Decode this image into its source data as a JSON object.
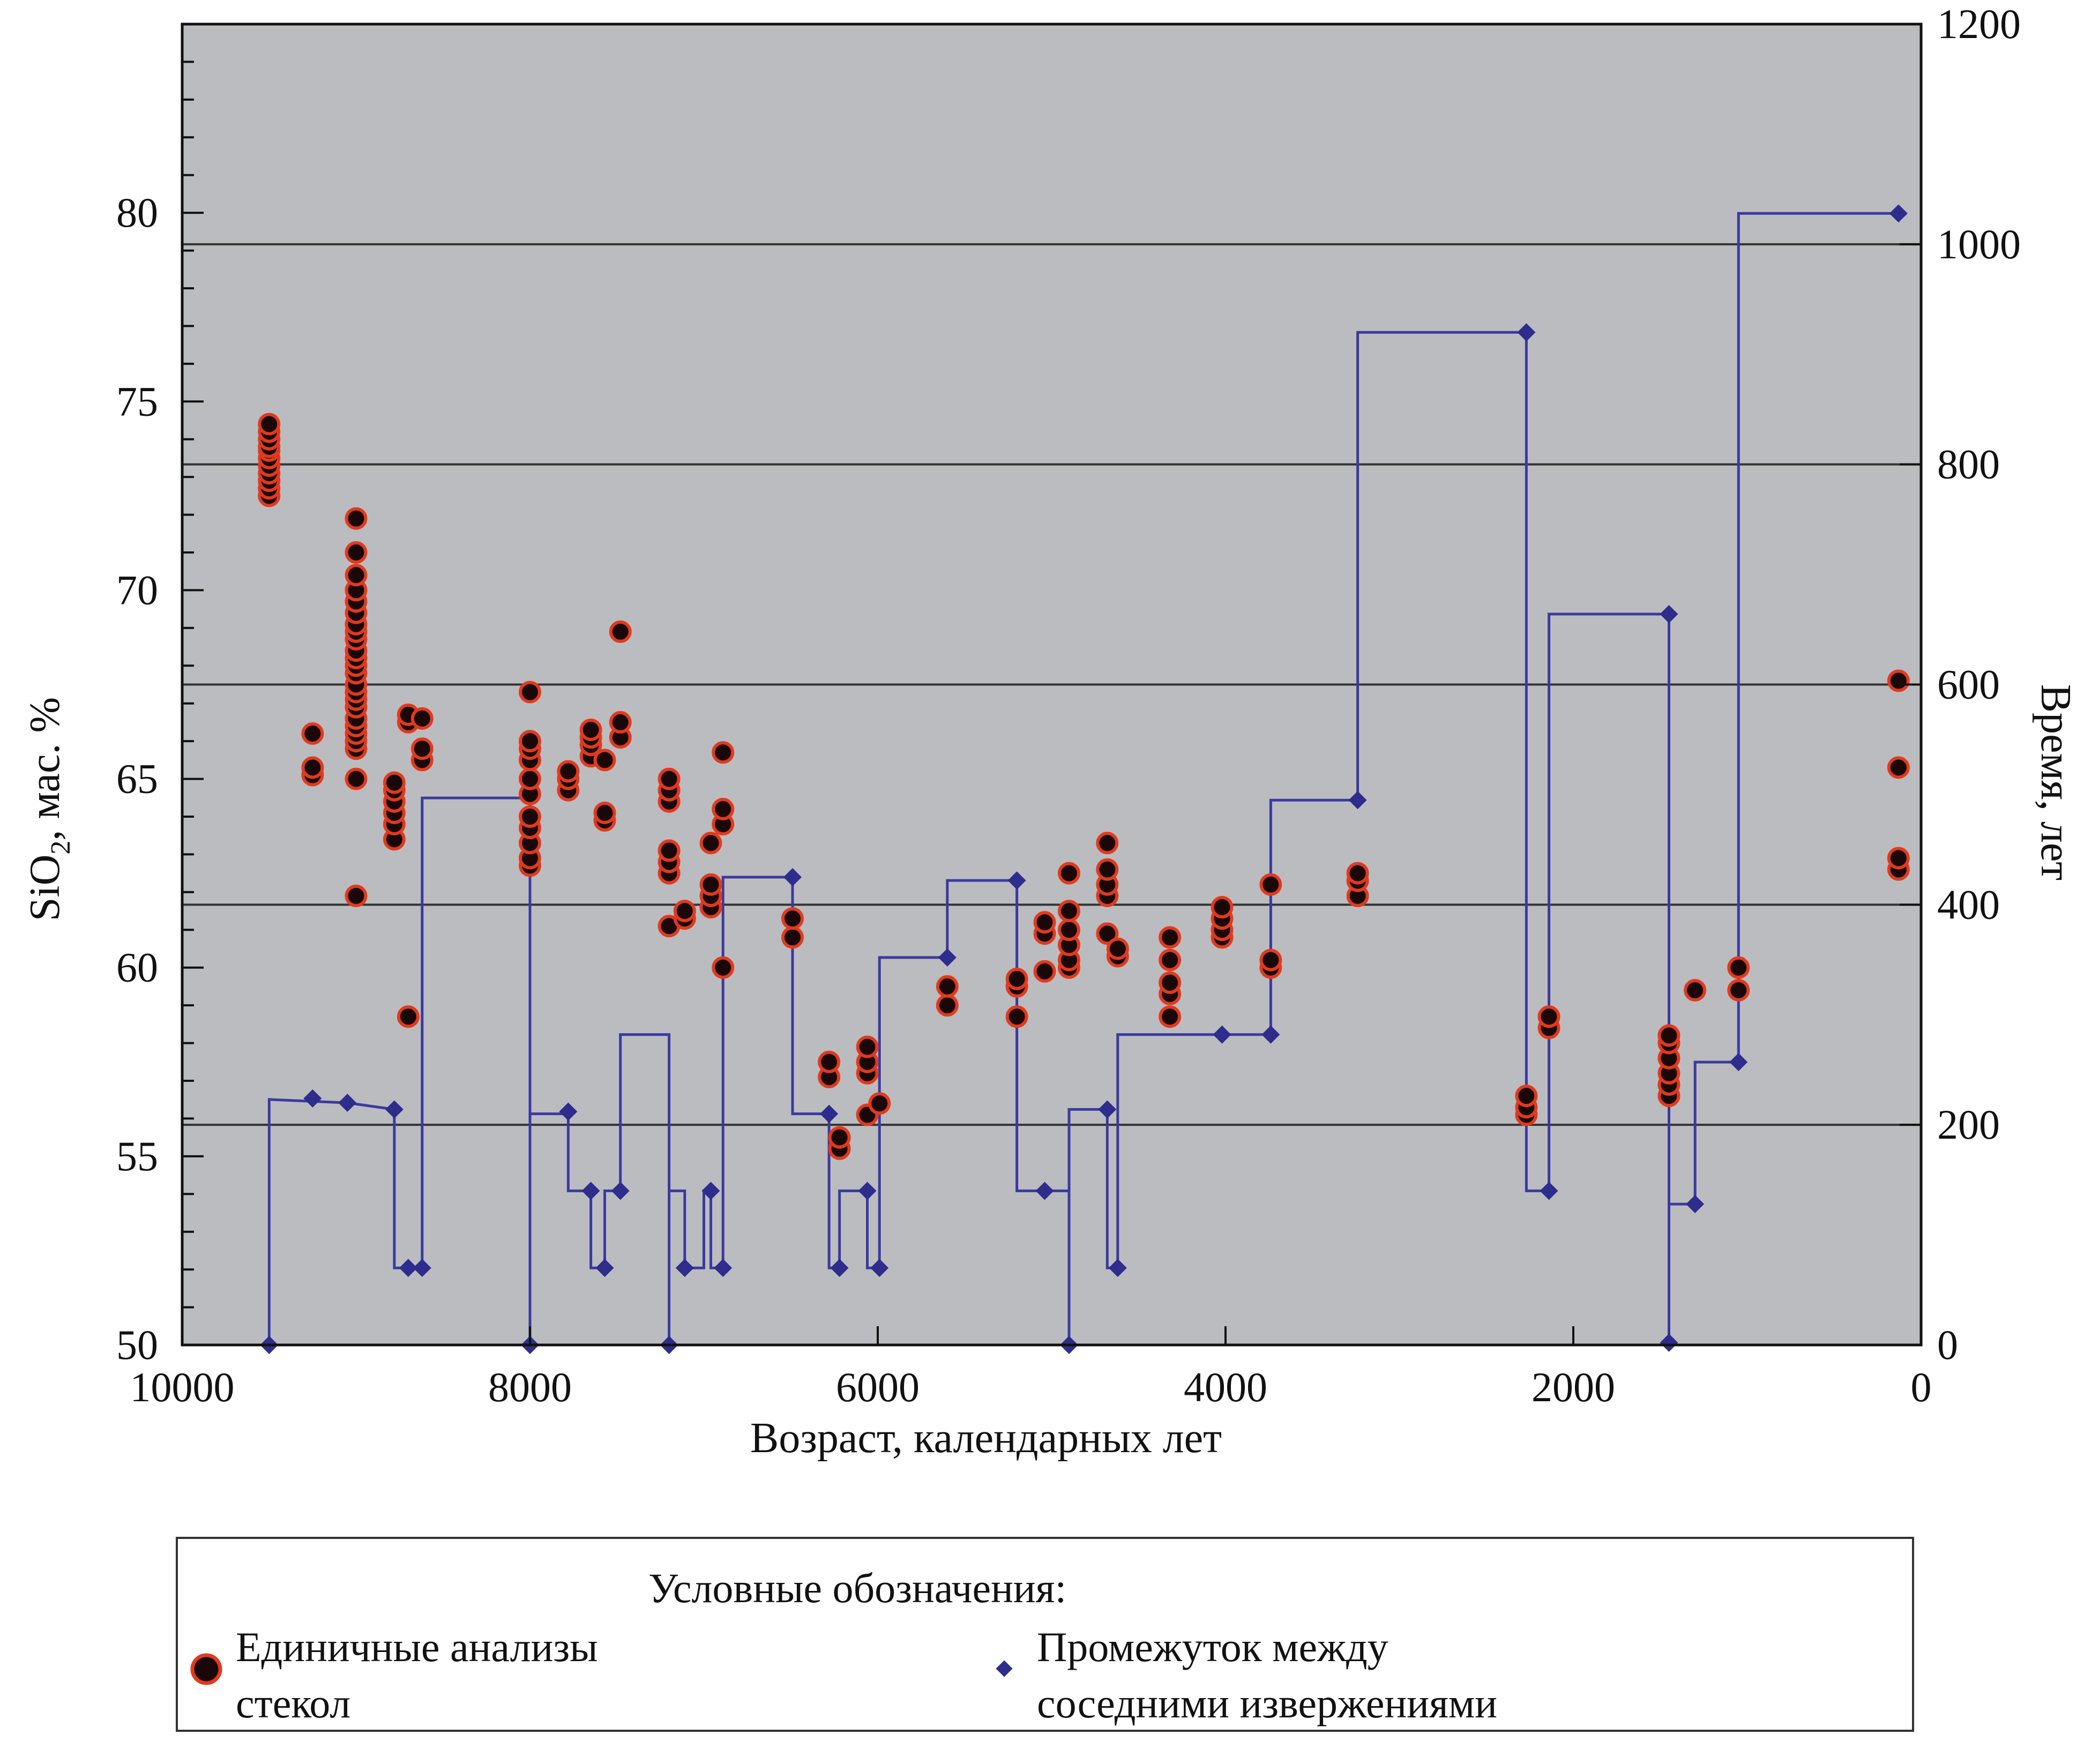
{
  "chart_data": {
    "type": "scatter",
    "x_axis": {
      "label": "Возраст, календарных лет",
      "range": [
        10000,
        0
      ],
      "ticks": [
        10000,
        8000,
        6000,
        4000,
        2000,
        0
      ],
      "tick_labels": [
        "10000",
        "8000",
        "6000",
        "4000",
        "2000",
        "0"
      ],
      "reversed": true
    },
    "y_axis_left": {
      "label_main": "SiO",
      "label_sub": "2",
      "label_rest": ", мас. %",
      "range": [
        50,
        85
      ],
      "ticks": [
        50,
        55,
        60,
        65,
        70,
        75,
        80
      ],
      "tick_labels": [
        "50",
        "55",
        "60",
        "65",
        "70",
        "75",
        "80"
      ]
    },
    "y_axis_right": {
      "label": "Время, лет",
      "range": [
        0,
        1200
      ],
      "ticks": [
        0,
        200,
        400,
        600,
        800,
        1000,
        1200
      ],
      "tick_labels": [
        "0",
        "200",
        "400",
        "600",
        "800",
        "1000",
        "1200"
      ],
      "gridlines": [
        200,
        400,
        600,
        800,
        1000
      ]
    },
    "colors": {
      "plot_bg": "#bbbcbf",
      "dot_fill": "#1a0707",
      "dot_stroke": "#e03a1e",
      "line": "#3b3aa0",
      "diamond": "#2e2c8c",
      "grid": "#333333"
    },
    "series": [
      {
        "name": "Единичные анализы стекол",
        "axis": "left",
        "kind": "scatter",
        "groups": [
          {
            "x": 9500,
            "y": [
              72.5,
              72.7,
              72.9,
              73.1,
              73.3,
              73.5,
              73.7,
              73.8,
              74.0,
              74.2,
              74.4
            ]
          },
          {
            "x": 9250,
            "y": [
              65.1,
              65.3,
              66.2
            ]
          },
          {
            "x": 9000,
            "y": [
              61.9,
              65.0,
              65.8,
              66.0,
              66.2,
              66.4,
              66.6,
              66.9,
              67.1,
              67.3,
              67.5,
              67.8,
              68.0,
              68.2,
              68.4,
              68.7,
              68.9,
              69.1,
              69.4,
              69.7,
              70.0,
              70.4,
              71.0,
              71.9
            ]
          },
          {
            "x": 8780,
            "y": [
              63.4,
              63.8,
              64.1,
              64.4,
              64.7,
              64.9
            ]
          },
          {
            "x": 8700,
            "y": [
              58.7,
              66.5,
              66.7
            ]
          },
          {
            "x": 8620,
            "y": [
              65.5,
              65.8,
              66.6
            ]
          },
          {
            "x": 8000,
            "y": [
              62.7,
              62.9,
              63.3,
              63.7,
              64.0,
              64.6,
              65.0,
              65.5,
              65.8,
              66.0,
              67.3
            ]
          },
          {
            "x": 7780,
            "y": [
              64.7,
              65.0,
              65.2
            ]
          },
          {
            "x": 7650,
            "y": [
              65.6,
              65.9,
              66.1,
              66.3
            ]
          },
          {
            "x": 7570,
            "y": [
              63.9,
              64.1,
              65.5
            ]
          },
          {
            "x": 7480,
            "y": [
              66.1,
              66.5,
              68.9
            ]
          },
          {
            "x": 7200,
            "y": [
              61.1,
              62.5,
              62.8,
              63.1,
              64.4,
              64.7,
              65.0
            ]
          },
          {
            "x": 7110,
            "y": [
              61.3,
              61.5
            ]
          },
          {
            "x": 6960,
            "y": [
              61.6,
              61.9,
              62.2,
              63.3
            ]
          },
          {
            "x": 6890,
            "y": [
              60.0,
              63.8,
              64.2,
              65.7
            ]
          },
          {
            "x": 6490,
            "y": [
              60.8,
              61.3
            ]
          },
          {
            "x": 6280,
            "y": [
              57.1,
              57.5
            ]
          },
          {
            "x": 6220,
            "y": [
              55.2,
              55.5
            ]
          },
          {
            "x": 6060,
            "y": [
              56.1,
              57.2,
              57.5,
              57.9
            ]
          },
          {
            "x": 5990,
            "y": [
              56.4
            ]
          },
          {
            "x": 5600,
            "y": [
              59.0,
              59.5
            ]
          },
          {
            "x": 5200,
            "y": [
              58.7,
              59.5,
              59.7
            ]
          },
          {
            "x": 5040,
            "y": [
              59.9,
              60.9,
              61.2
            ]
          },
          {
            "x": 4900,
            "y": [
              60.0,
              60.2,
              60.6,
              61.0,
              61.5,
              62.5
            ]
          },
          {
            "x": 4680,
            "y": [
              60.9,
              61.9,
              62.2,
              62.6,
              63.3
            ]
          },
          {
            "x": 4620,
            "y": [
              60.3,
              60.5
            ]
          },
          {
            "x": 4320,
            "y": [
              58.7,
              59.3,
              59.6,
              60.2,
              60.8
            ]
          },
          {
            "x": 4020,
            "y": [
              60.8,
              61.0,
              61.3,
              61.6
            ]
          },
          {
            "x": 3740,
            "y": [
              60.0,
              60.2,
              62.2
            ]
          },
          {
            "x": 3240,
            "y": [
              61.9,
              62.3,
              62.5
            ]
          },
          {
            "x": 2270,
            "y": [
              56.1,
              56.3,
              56.6
            ]
          },
          {
            "x": 2140,
            "y": [
              58.4,
              58.7
            ]
          },
          {
            "x": 1450,
            "y": [
              56.6,
              56.9,
              57.2,
              57.6,
              58.0,
              58.2
            ]
          },
          {
            "x": 1300,
            "y": [
              59.4
            ]
          },
          {
            "x": 1050,
            "y": [
              59.4,
              60.0
            ]
          },
          {
            "x": 130,
            "y": [
              62.6,
              62.9,
              65.3,
              67.6
            ]
          }
        ]
      },
      {
        "name": "Промежуток между соседними извержениями",
        "axis": "right",
        "kind": "step",
        "points": [
          {
            "x": 9500,
            "y": 0
          },
          {
            "x": 9250,
            "y": 224
          },
          {
            "x": 9050,
            "y": 220
          },
          {
            "x": 8780,
            "y": 214
          },
          {
            "x": 8700,
            "y": 70
          },
          {
            "x": 8620,
            "y": 70
          },
          {
            "x": 8000,
            "y": 0
          },
          {
            "x": 7780,
            "y": 212
          },
          {
            "x": 7650,
            "y": 140
          },
          {
            "x": 7570,
            "y": 70
          },
          {
            "x": 7480,
            "y": 140
          },
          {
            "x": 7200,
            "y": 0
          },
          {
            "x": 7110,
            "y": 70
          },
          {
            "x": 6960,
            "y": 140
          },
          {
            "x": 6890,
            "y": 70
          },
          {
            "x": 6490,
            "y": 425
          },
          {
            "x": 6280,
            "y": 210
          },
          {
            "x": 6220,
            "y": 70
          },
          {
            "x": 6060,
            "y": 140
          },
          {
            "x": 5990,
            "y": 70
          },
          {
            "x": 5600,
            "y": 352
          },
          {
            "x": 5200,
            "y": 422
          },
          {
            "x": 5040,
            "y": 140
          },
          {
            "x": 4900,
            "y": 0
          },
          {
            "x": 4680,
            "y": 214
          },
          {
            "x": 4620,
            "y": 70
          },
          {
            "x": 4020,
            "y": 282
          },
          {
            "x": 3740,
            "y": 282
          },
          {
            "x": 3240,
            "y": 495
          },
          {
            "x": 2270,
            "y": 920
          },
          {
            "x": 2140,
            "y": 140
          },
          {
            "x": 1450,
            "y": 664
          },
          {
            "x": 1450,
            "y": 2
          },
          {
            "x": 1300,
            "y": 128
          },
          {
            "x": 1050,
            "y": 257
          },
          {
            "x": 130,
            "y": 1028
          }
        ],
        "step_path": [
          [
            9500,
            0
          ],
          [
            9500,
            223
          ],
          [
            9050,
            220
          ],
          [
            8780,
            214
          ],
          [
            8780,
            70
          ],
          [
            8620,
            70
          ],
          [
            8620,
            497
          ],
          [
            8000,
            497
          ],
          [
            8000,
            0
          ],
          [
            8000,
            210
          ],
          [
            7780,
            210
          ],
          [
            7780,
            140
          ],
          [
            7650,
            140
          ],
          [
            7650,
            70
          ],
          [
            7570,
            70
          ],
          [
            7570,
            140
          ],
          [
            7480,
            140
          ],
          [
            7480,
            282
          ],
          [
            7200,
            282
          ],
          [
            7200,
            0
          ],
          [
            7200,
            140
          ],
          [
            7110,
            140
          ],
          [
            7110,
            70
          ],
          [
            7000,
            70
          ],
          [
            7000,
            140
          ],
          [
            6960,
            140
          ],
          [
            6960,
            70
          ],
          [
            6890,
            70
          ],
          [
            6890,
            425
          ],
          [
            6490,
            425
          ],
          [
            6490,
            210
          ],
          [
            6280,
            210
          ],
          [
            6280,
            70
          ],
          [
            6220,
            70
          ],
          [
            6220,
            140
          ],
          [
            6060,
            140
          ],
          [
            6060,
            70
          ],
          [
            5990,
            70
          ],
          [
            5990,
            352
          ],
          [
            5600,
            352
          ],
          [
            5600,
            422
          ],
          [
            5200,
            422
          ],
          [
            5200,
            140
          ],
          [
            5040,
            140
          ],
          [
            4900,
            140
          ],
          [
            4900,
            0
          ],
          [
            4900,
            214
          ],
          [
            4680,
            214
          ],
          [
            4680,
            70
          ],
          [
            4620,
            70
          ],
          [
            4620,
            282
          ],
          [
            3740,
            282
          ],
          [
            3740,
            495
          ],
          [
            3240,
            495
          ],
          [
            3240,
            920
          ],
          [
            2270,
            920
          ],
          [
            2270,
            140
          ],
          [
            2140,
            140
          ],
          [
            2140,
            664
          ],
          [
            1450,
            664
          ],
          [
            1450,
            2
          ],
          [
            1450,
            128
          ],
          [
            1300,
            128
          ],
          [
            1300,
            257
          ],
          [
            1050,
            257
          ],
          [
            1050,
            1028
          ],
          [
            130,
            1028
          ]
        ]
      }
    ],
    "legend": {
      "title": "Условные обозначения:",
      "dot_line1": "Единичные анализы",
      "dot_line2": "стекол",
      "diamond_line1": "Промежуток между",
      "diamond_line2": "соседними извержениями",
      "placement": "bottom"
    }
  }
}
